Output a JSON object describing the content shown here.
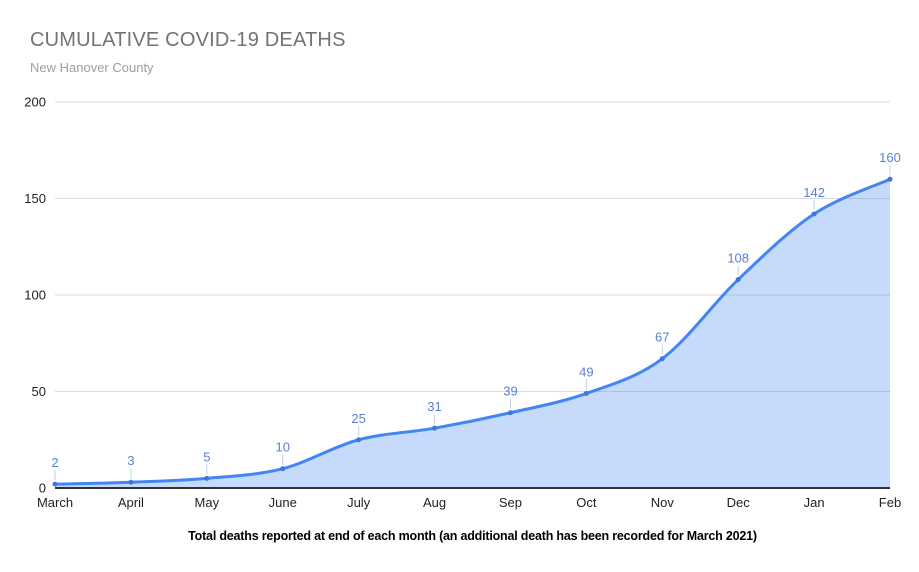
{
  "header": {
    "title": "CUMULATIVE COVID-19 DEATHS",
    "subtitle": "New Hanover County"
  },
  "footer": {
    "note": "Total deaths reported at end of each month (an additional death has been recorded for March 2021)"
  },
  "chart_data": {
    "type": "area",
    "title": "CUMULATIVE COVID-19 DEATHS",
    "subtitle": "New Hanover County",
    "categories": [
      "March",
      "April",
      "May",
      "June",
      "July",
      "Aug",
      "Sep",
      "Oct",
      "Nov",
      "Dec",
      "Jan",
      "Feb"
    ],
    "values": [
      2,
      3,
      5,
      10,
      25,
      31,
      39,
      49,
      67,
      108,
      142,
      160
    ],
    "xlabel": "",
    "ylabel": "",
    "ylim": [
      0,
      200
    ],
    "yticks": [
      0,
      50,
      100,
      150,
      200
    ],
    "grid": true,
    "legend": "none",
    "smooth": true,
    "data_labels_visible": true,
    "note": "Total deaths reported at end of each month (an additional death has been recorded for March 2021)",
    "colors": {
      "line": "#4285f4",
      "point": "#3c78d8",
      "area_fill": "rgba(66,133,244,0.3)",
      "data_label": "#5a7fd5",
      "callout": "#c4cde4",
      "grid": "#dcdcdc",
      "axis_line": "#333333",
      "tick_text": "#222222",
      "title": "#737373",
      "subtitle": "#9e9e9e"
    }
  }
}
